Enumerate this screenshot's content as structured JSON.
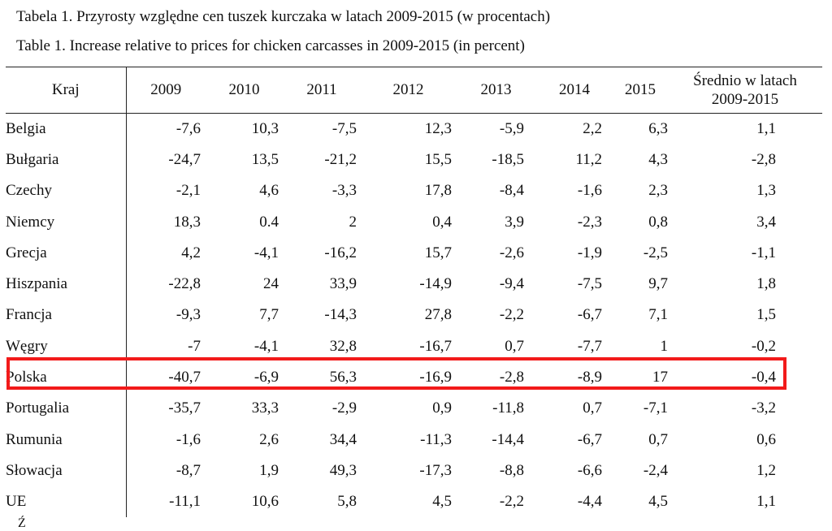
{
  "title_pl": "Tabela 1. Przyrosty względne cen tuszek kurczaka w latach 2009-2015 (w procentach)",
  "title_en": "Table 1. Increase relative to prices for chicken carcasses in 2009-2015 (in percent)",
  "headers": {
    "country": "Kraj",
    "years": [
      "2009",
      "2010",
      "2011",
      "2012",
      "2013",
      "2014",
      "2015"
    ],
    "average_line1": "Średnio w latach",
    "average_line2": "2009-2015"
  },
  "rows": [
    {
      "country": "Belgia",
      "values": [
        "-7,6",
        "10,3",
        "-7,5",
        "12,3",
        "-5,9",
        "2,2",
        "6,3",
        "1,1"
      ]
    },
    {
      "country": "Bułgaria",
      "values": [
        "-24,7",
        "13,5",
        "-21,2",
        "15,5",
        "-18,5",
        "11,2",
        "4,3",
        "-2,8"
      ]
    },
    {
      "country": "Czechy",
      "values": [
        "-2,1",
        "4,6",
        "-3,3",
        "17,8",
        "-8,4",
        "-1,6",
        "2,3",
        "1,3"
      ]
    },
    {
      "country": "Niemcy",
      "values": [
        "18,3",
        "0.4",
        "2",
        "0,4",
        "3,9",
        "-2,3",
        "0,8",
        "3,4"
      ]
    },
    {
      "country": "Grecja",
      "values": [
        "4,2",
        "-4,1",
        "-16,2",
        "15,7",
        "-2,6",
        "-1,9",
        "-2,5",
        "-1,1"
      ]
    },
    {
      "country": "Hiszpania",
      "values": [
        "-22,8",
        "24",
        "33,9",
        "-14,9",
        "-9,4",
        "-7,5",
        "9,7",
        "1,8"
      ]
    },
    {
      "country": "Francja",
      "values": [
        "-9,3",
        "7,7",
        "-14,3",
        "27,8",
        "-2,2",
        "-6,7",
        "7,1",
        "1,5"
      ]
    },
    {
      "country": "Węgry",
      "values": [
        "-7",
        "-4,1",
        "32,8",
        "-16,7",
        "0,7",
        "-7,7",
        "1",
        "-0,2"
      ]
    },
    {
      "country": "Polska",
      "values": [
        "-40,7",
        "-6,9",
        "56,3",
        "-16,9",
        "-2,8",
        "-8,9",
        "17",
        "-0,4"
      ]
    },
    {
      "country": "Portugalia",
      "values": [
        "-35,7",
        "33,3",
        "-2,9",
        "0,9",
        "-11,8",
        "0,7",
        "-7,1",
        "-3,2"
      ]
    },
    {
      "country": "Rumunia",
      "values": [
        "-1,6",
        "2,6",
        "34,4",
        "-11,3",
        "-14,4",
        "-6,7",
        "0,7",
        "0,6"
      ]
    },
    {
      "country": "Słowacja",
      "values": [
        "-8,7",
        "1,9",
        "49,3",
        "-17,3",
        "-8,8",
        "-6,6",
        "-2,4",
        "1,2"
      ]
    },
    {
      "country": "UE",
      "values": [
        "-11,1",
        "10,6",
        "5,8",
        "4,5",
        "-2,2",
        "-4,4",
        "4,5",
        "1,1"
      ]
    }
  ],
  "highlighted_row": "Polska",
  "highlight_color": "#f21a1a",
  "footnote": "Ź"
}
